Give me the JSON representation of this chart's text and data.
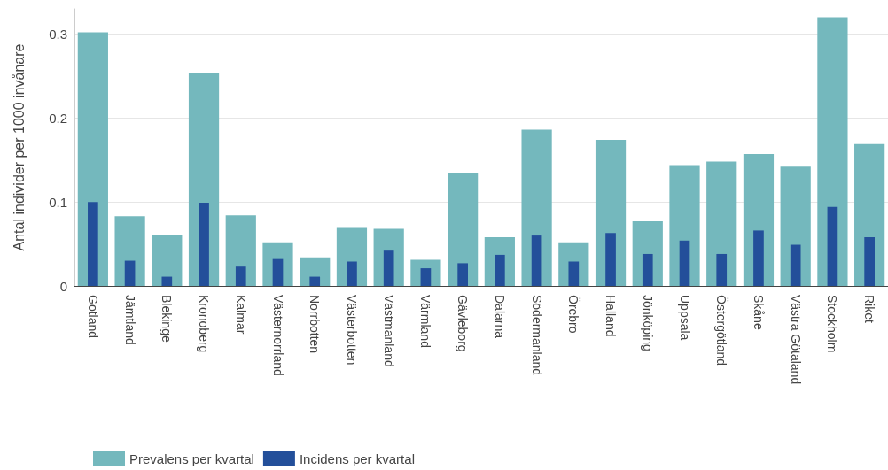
{
  "chart_data": {
    "type": "bar",
    "ylabel": "Antal individer per 1000 invånare",
    "categories": [
      "Gotland",
      "Jämtland",
      "Blekinge",
      "Kronoberg",
      "Kalmar",
      "Västernorrland",
      "Norrbotten",
      "Västerbotten",
      "Västmanland",
      "Värmland",
      "Gävleborg",
      "Dalarna",
      "Södermanland",
      "Örebro",
      "Halland",
      "Jönköping",
      "Uppsala",
      "Östergötland",
      "Skåne",
      "Västra Götaland",
      "Stockholm",
      "Riket"
    ],
    "series": [
      {
        "name": "Prevalens per kvartal",
        "color": "#74b8bd",
        "values": [
          0.302,
          0.083,
          0.061,
          0.253,
          0.084,
          0.052,
          0.034,
          0.069,
          0.068,
          0.031,
          0.134,
          0.058,
          0.186,
          0.052,
          0.174,
          0.077,
          0.144,
          0.148,
          0.157,
          0.142,
          0.32,
          0.169
        ]
      },
      {
        "name": "Incidens per kvartal",
        "color": "#234f9a",
        "values": [
          0.1,
          0.03,
          0.011,
          0.099,
          0.023,
          0.032,
          0.011,
          0.029,
          0.042,
          0.021,
          0.027,
          0.037,
          0.06,
          0.029,
          0.063,
          0.038,
          0.054,
          0.038,
          0.066,
          0.049,
          0.094,
          0.058
        ]
      }
    ],
    "ylim": [
      0,
      0.33
    ],
    "yticks": [
      0,
      0.1,
      0.2,
      0.3
    ],
    "grid": "y",
    "legend": "bottom left"
  }
}
